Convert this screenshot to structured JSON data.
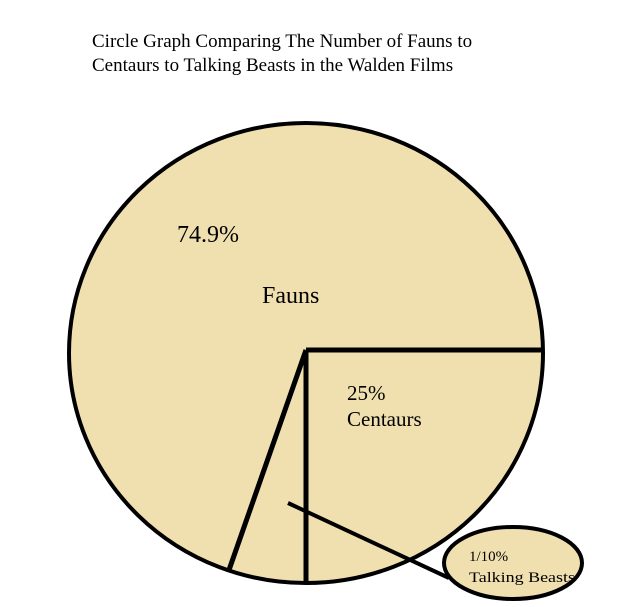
{
  "chart_data": {
    "type": "pie",
    "title_lines": [
      "Circle Graph Comparing The Number of Fauns to",
      "Centaurs to Talking Beasts in the Walden Films"
    ],
    "slices": [
      {
        "name": "Fauns",
        "value": 74.9,
        "label": "74.9%"
      },
      {
        "name": "Centaurs",
        "value": 25,
        "label": "25%"
      },
      {
        "name": "Talking Beasts",
        "value": 0.1,
        "label": "1/10%"
      }
    ],
    "fill_color": "#f0e0b0",
    "stroke_color": "#000000"
  }
}
